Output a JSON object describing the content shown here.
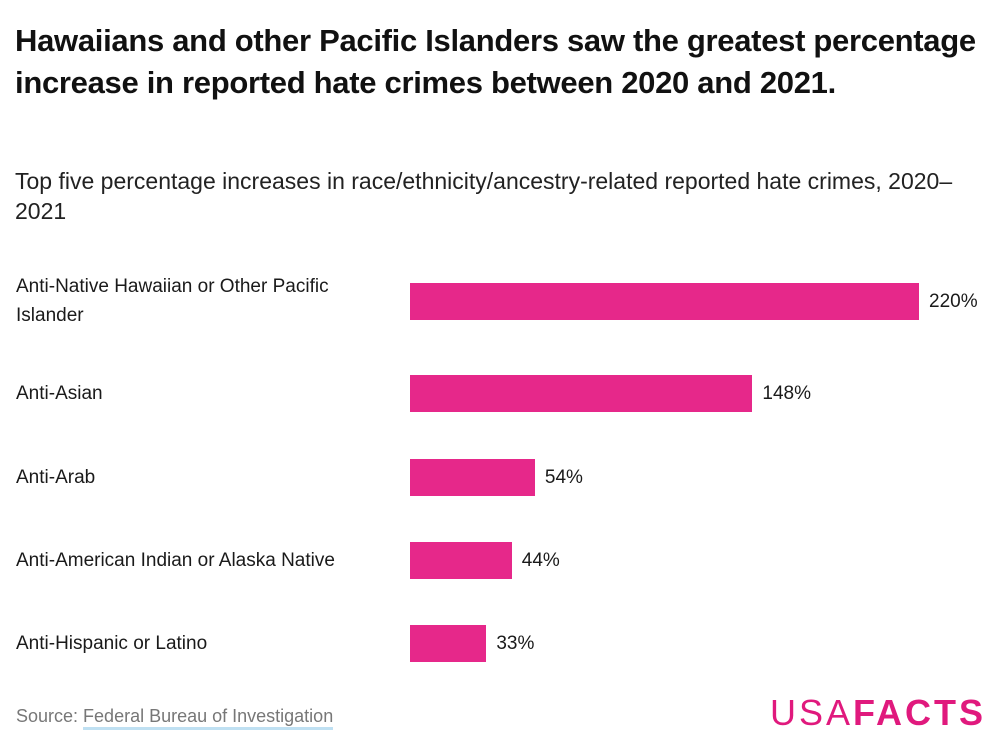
{
  "header": {
    "title": "Hawaiians and other Pacific Islanders saw the greatest percentage increase in reported hate crimes between 2020 and 2021.",
    "subtitle": "Top five percentage increases in race/ethnicity/ancestry-related reported hate crimes, 2020–2021"
  },
  "colors": {
    "bar": "#e6288a",
    "logo": "#e0197d"
  },
  "rows": [
    {
      "label": "Anti-Native Hawaiian or Other Pacific Islander",
      "value": 220,
      "value_label": "220%"
    },
    {
      "label": "Anti-Asian",
      "value": 148,
      "value_label": "148%"
    },
    {
      "label": "Anti-Arab",
      "value": 54,
      "value_label": "54%"
    },
    {
      "label": "Anti-American Indian or Alaska Native",
      "value": 44,
      "value_label": "44%"
    },
    {
      "label": "Anti-Hispanic or Latino",
      "value": 33,
      "value_label": "33%"
    }
  ],
  "footer": {
    "source_prefix": "Source: ",
    "source_link": "Federal Bureau of Investigation",
    "logo_usa": "USA",
    "logo_facts": "FACTS"
  },
  "chart_data": {
    "type": "bar",
    "orientation": "horizontal",
    "title": "Hawaiians and other Pacific Islanders saw the greatest percentage increase in reported hate crimes between 2020 and 2021.",
    "subtitle": "Top five percentage increases in race/ethnicity/ancestry-related reported hate crimes, 2020–2021",
    "categories": [
      "Anti-Native Hawaiian or Other Pacific Islander",
      "Anti-Asian",
      "Anti-Arab",
      "Anti-American Indian or Alaska Native",
      "Anti-Hispanic or Latino"
    ],
    "values": [
      220,
      148,
      54,
      44,
      33
    ],
    "unit": "%",
    "xlabel": "",
    "ylabel": "",
    "grid": false,
    "legend": null,
    "source": "Federal Bureau of Investigation"
  }
}
